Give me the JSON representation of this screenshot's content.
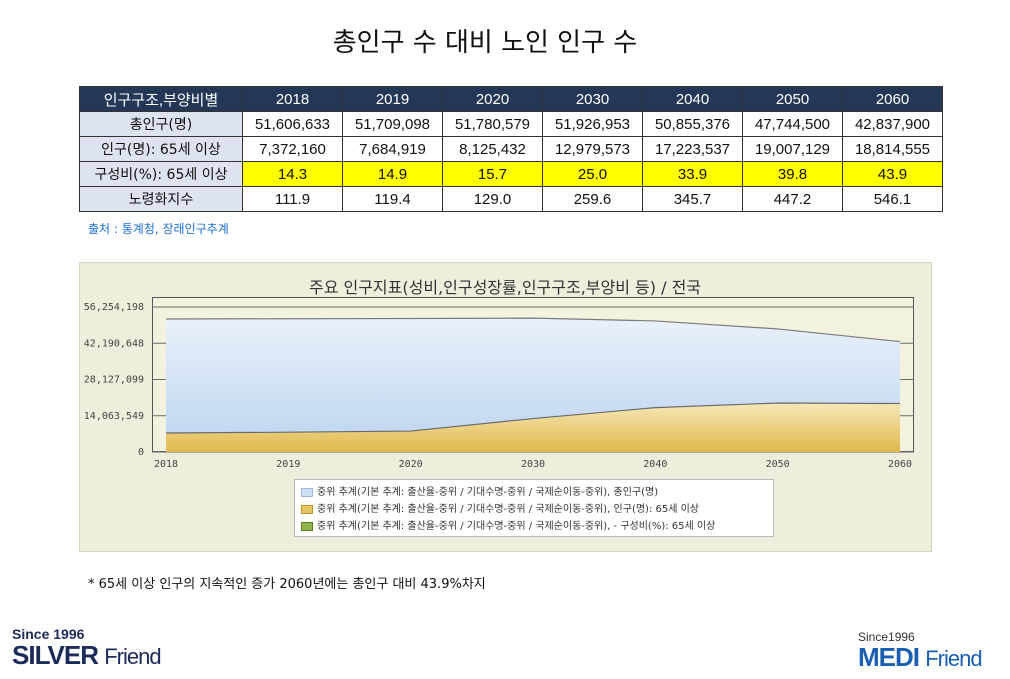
{
  "title": "총인구 수 대비 노인 인구 수",
  "table": {
    "header_label": "인구구조,부양비별",
    "years": [
      "2018",
      "2019",
      "2020",
      "2030",
      "2040",
      "2050",
      "2060"
    ],
    "rows": [
      {
        "label": "총인구(명)",
        "values": [
          "51,606,633",
          "51,709,098",
          "51,780,579",
          "51,926,953",
          "50,855,376",
          "47,744,500",
          "42,837,900"
        ]
      },
      {
        "label": "인구(명): 65세 이상",
        "values": [
          "7,372,160",
          "7,684,919",
          "8,125,432",
          "12,979,573",
          "17,223,537",
          "19,007,129",
          "18,814,555"
        ]
      },
      {
        "label": "구성비(%): 65세 이상",
        "values": [
          "14.3",
          "14.9",
          "15.7",
          "25.0",
          "33.9",
          "39.8",
          "43.9"
        ]
      },
      {
        "label": "노령화지수",
        "values": [
          "111.9",
          "119.4",
          "129.0",
          "259.6",
          "345.7",
          "447.2",
          "546.1"
        ]
      }
    ]
  },
  "source": "출처 : 통계청, 장래인구추계",
  "chart_data": {
    "type": "area",
    "title": "주요 인구지표(성비,인구성장률,인구구조,부양비 등) / 전국",
    "x": [
      "2018",
      "2019",
      "2020",
      "2030",
      "2040",
      "2050",
      "2060"
    ],
    "y_ticks": [
      "56,254,198",
      "42,190,648",
      "28,127,099",
      "14,063,549",
      "0"
    ],
    "ylim": [
      0,
      56254198
    ],
    "series": [
      {
        "name": "중위 추계(기본 추계: 출산율-중위 / 기대수명-중위 / 국제순이동-중위), 총인구(명)",
        "values": [
          51606633,
          51709098,
          51780579,
          51926953,
          50855376,
          47744500,
          42837900
        ],
        "color": "#cfe0f5"
      },
      {
        "name": "중위 추계(기본 추계: 출산율-중위 / 기대수명-중위 / 국제순이동-중위), 인구(명): 65세 이상",
        "values": [
          7372160,
          7684919,
          8125432,
          12979573,
          17223537,
          19007129,
          18814555
        ],
        "color": "#e5c463"
      },
      {
        "name": "중위 추계(기본 추계: 출산율-중위 / 기대수명-중위 / 국제순이동-중위), - 구성비(%): 65세 이상",
        "values": [
          14.3,
          14.9,
          15.7,
          25.0,
          33.9,
          39.8,
          43.9
        ],
        "color": "#8fb34a"
      }
    ],
    "legend": "bottom"
  },
  "note": "* 65세 이상 인구의 지속적인 증가 2060년에는 총인구 대비 43.9%차지",
  "logos": {
    "left_since": "Since 1996",
    "left_brand": "SILVER",
    "left_sub": "Friend",
    "right_since": "Since1996",
    "right_brand": "MEDI",
    "right_sub": "Friend"
  }
}
